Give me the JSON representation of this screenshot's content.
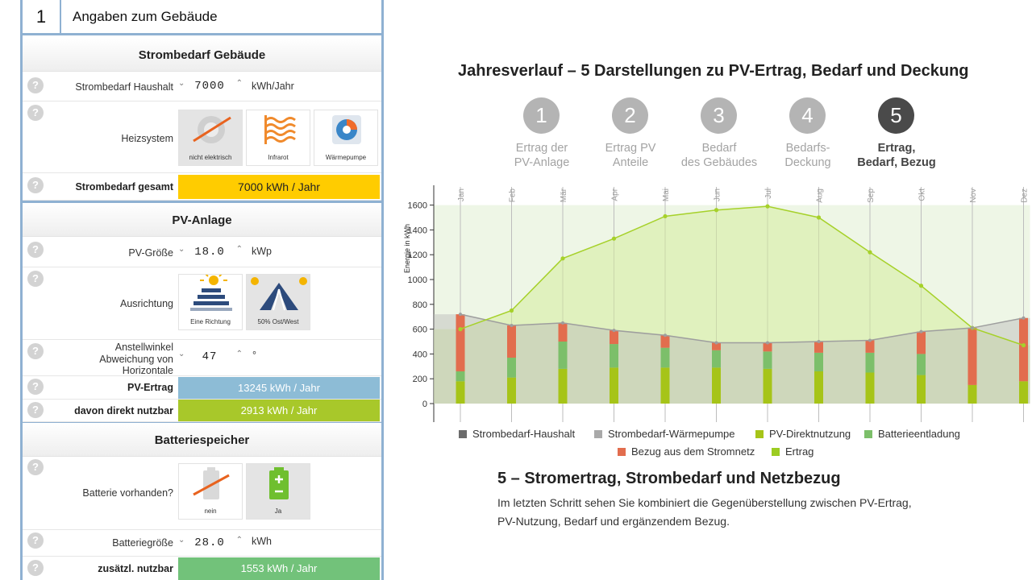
{
  "panel": {
    "step_number": "1",
    "step_title": "Angaben zum Gebäude",
    "help_glyph": "?",
    "strom": {
      "title": "Strombedarf Gebäude",
      "haushalt_label": "Strombedarf Haushalt",
      "haushalt_value": "7000",
      "haushalt_unit": "kWh/Jahr",
      "heiz_label": "Heizsystem",
      "heiz_options": [
        {
          "label": "nicht elektrisch",
          "icon": "no-electric-icon",
          "selected": true
        },
        {
          "label": "Infrarot",
          "icon": "infrared-heating-icon",
          "selected": false
        },
        {
          "label": "Wärmepumpe",
          "icon": "heat-pump-icon",
          "selected": false
        }
      ],
      "gesamt_label": "Strombedarf gesamt",
      "gesamt_value": "7000 kWh / Jahr"
    },
    "pv": {
      "title": "PV-Anlage",
      "groesse_label": "PV-Größe",
      "groesse_value": "18.0",
      "groesse_unit": "kWp",
      "ausrichtung_label": "Ausrichtung",
      "ausrichtung_options": [
        {
          "label": "Eine Richtung",
          "icon": "one-direction-icon",
          "selected": false
        },
        {
          "label": "50% Ost/West",
          "icon": "east-west-icon",
          "selected": true
        }
      ],
      "winkel_label_1": "Anstellwinkel",
      "winkel_label_2": "Abweichung von",
      "winkel_label_3": "Horizontale",
      "winkel_value": "47",
      "winkel_unit": "°",
      "ertrag_label": "PV-Ertrag",
      "ertrag_value": "13245 kWh / Jahr",
      "direkt_label": "davon direkt nutzbar",
      "direkt_value": "2913 kWh / Jahr"
    },
    "batterie": {
      "title": "Batteriespeicher",
      "vorhanden_label": "Batterie vorhanden?",
      "options": [
        {
          "label": "nein",
          "icon": "no-battery-icon",
          "selected": false
        },
        {
          "label": "Ja",
          "icon": "battery-icon",
          "selected": true
        }
      ],
      "groesse_label": "Batteriegröße",
      "groesse_value": "28.0",
      "groesse_unit": "kWh",
      "zusaetzl_label": "zusätzl. nutzbar",
      "zusaetzl_value": "1553 kWh / Jahr"
    }
  },
  "main": {
    "title": "Jahresverlauf – 5 Darstellungen zu PV-Ertrag, Bedarf und Deckung",
    "steps": [
      {
        "num": "1",
        "line1": "Ertrag der",
        "line2": "PV-Anlage",
        "active": false
      },
      {
        "num": "2",
        "line1": "Ertrag PV",
        "line2": "Anteile",
        "active": false
      },
      {
        "num": "3",
        "line1": "Bedarf",
        "line2": "des Gebäudes",
        "active": false
      },
      {
        "num": "4",
        "line1": "Bedarfs-",
        "line2": "Deckung",
        "active": false
      },
      {
        "num": "5",
        "line1": "Ertrag,",
        "line2": "Bedarf, Bezug",
        "active": true
      }
    ],
    "section_title": "5 – Stromertrag, Strombedarf und Netzbezug",
    "section_text": "Im letzten Schritt sehen Sie kombiniert die Gegenüberstellung zwischen PV-Ertrag, PV-Nutzung, Bedarf und ergänzendem Bezug."
  },
  "colors": {
    "panel_border": "#8fb1d2",
    "gesamt_bg": "#ffcc00",
    "ertrag_bg": "#8dbcd6",
    "direkt_bg": "#a8c82a",
    "zusaetzl_bg": "#72c27a",
    "haushalt": "#6b6b6b",
    "waermepumpe": "#a9a9a9",
    "direktnutzung": "#a6c418",
    "batterie": "#7cbf6a",
    "bezug": "#e26d4e",
    "ertrag": "#9ccc22"
  },
  "chart_data": {
    "type": "area",
    "ylabel": "Energie in kWh",
    "ylim": [
      0,
      1750
    ],
    "yticks": [
      0,
      200,
      400,
      600,
      800,
      1000,
      1200,
      1400,
      1600
    ],
    "categories": [
      "Jan",
      "Feb",
      "Mär",
      "Apr",
      "Mai",
      "Jun",
      "Jul",
      "Aug",
      "Sep",
      "Okt",
      "Nov",
      "Dez"
    ],
    "ertrag": [
      600,
      750,
      1170,
      1330,
      1510,
      1560,
      1590,
      1500,
      1220,
      950,
      610,
      470
    ],
    "bedarf": [
      720,
      630,
      650,
      590,
      550,
      490,
      490,
      500,
      510,
      580,
      610,
      690
    ],
    "stacks": {
      "direktnutzung": [
        180,
        210,
        280,
        290,
        290,
        290,
        280,
        260,
        250,
        230,
        150,
        180
      ],
      "batterieentladung": [
        80,
        160,
        220,
        190,
        160,
        140,
        140,
        150,
        160,
        170,
        0,
        0
      ],
      "bezug": [
        460,
        260,
        150,
        110,
        100,
        60,
        70,
        90,
        100,
        180,
        460,
        510
      ]
    },
    "legend": [
      {
        "name": "Strombedarf-Haushalt",
        "color": "#6b6b6b"
      },
      {
        "name": "Strombedarf-Wärmepumpe",
        "color": "#a9a9a9"
      },
      {
        "name": "PV-Direktnutzung",
        "color": "#a6c418"
      },
      {
        "name": "Batterieentladung",
        "color": "#7cbf6a"
      },
      {
        "name": "Bezug aus dem Stromnetz",
        "color": "#e26d4e"
      },
      {
        "name": "Ertrag",
        "color": "#9ccc22"
      }
    ]
  }
}
